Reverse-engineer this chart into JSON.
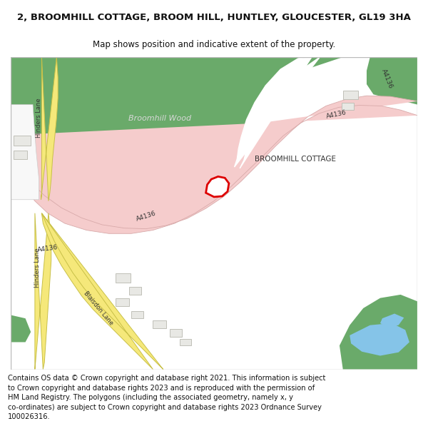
{
  "title": "2, BROOMHILL COTTAGE, BROOM HILL, HUNTLEY, GLOUCESTER, GL19 3HA",
  "subtitle": "Map shows position and indicative extent of the property.",
  "footer": "Contains OS data © Crown copyright and database right 2021. This information is subject to Crown copyright and database rights 2023 and is reproduced with the permission of HM Land Registry. The polygons (including the associated geometry, namely x, y co-ordinates) are subject to Crown copyright and database rights 2023 Ordnance Survey 100026316.",
  "bg_color": "#ffffff",
  "map_bg": "#f5f2ee",
  "green_color": "#6aaa6a",
  "road_color": "#f5cccc",
  "road_edge_color": "#e0aaaa",
  "yellow_road_color": "#f5e87a",
  "yellow_road_edge": "#c8c048",
  "water_color": "#85c4e8",
  "plot_color": "#ffffff",
  "plot_border": "#dd0000",
  "building_color": "#e8e8e4",
  "building_border": "#c0c0b8"
}
